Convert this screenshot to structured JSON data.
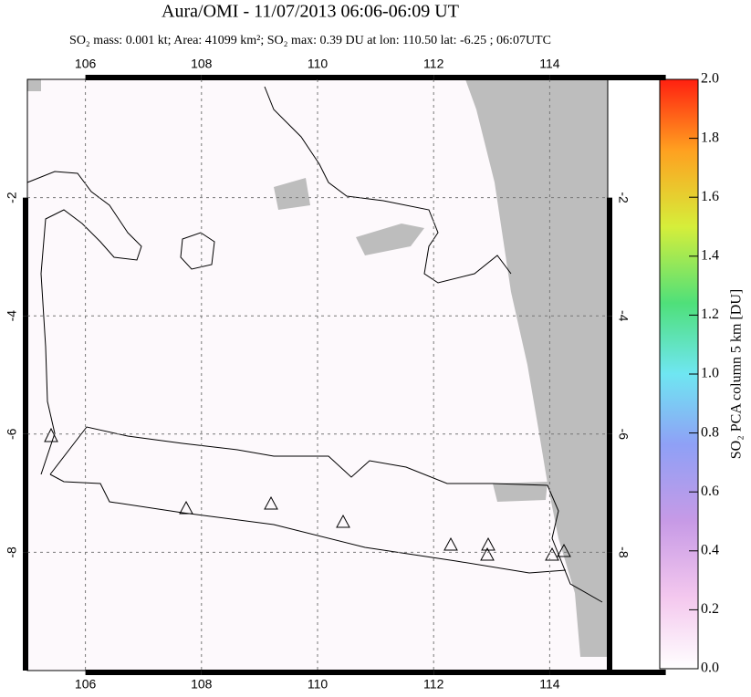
{
  "chart_data": {
    "type": "map",
    "title": "Aura/OMI - 11/07/2013 06:06-06:09 UT",
    "subtitle": "SO₂ mass: 0.001 kt; Area: 41099 km²; SO₂ max: 0.39 DU at lon: 110.50 lat: -6.25 ; 06:07UTC",
    "xlim": [
      105,
      115
    ],
    "xticks": [
      106,
      108,
      110,
      112,
      114
    ],
    "ylim": [
      -10,
      0
    ],
    "yticks": [
      -2,
      -4,
      -6,
      -8
    ],
    "grid": true,
    "colorbar": {
      "label": "SO₂ PCA column 5 km [DU]",
      "lim": [
        0,
        2
      ],
      "ticks": [
        {
          "value": 0,
          "label": "0.0"
        },
        {
          "value": 0.2,
          "label": "0.2"
        },
        {
          "value": 0.4,
          "label": "0.4"
        },
        {
          "value": 0.6,
          "label": "0.6"
        },
        {
          "value": 0.8,
          "label": "0.8"
        },
        {
          "value": 1,
          "label": "1.0"
        },
        {
          "value": 1.2,
          "label": "1.2"
        },
        {
          "value": 1.4,
          "label": "1.4"
        },
        {
          "value": 1.6,
          "label": "1.6"
        },
        {
          "value": 1.8,
          "label": "1.8"
        },
        {
          "value": 2,
          "label": "2.0"
        }
      ]
    }
  }
}
